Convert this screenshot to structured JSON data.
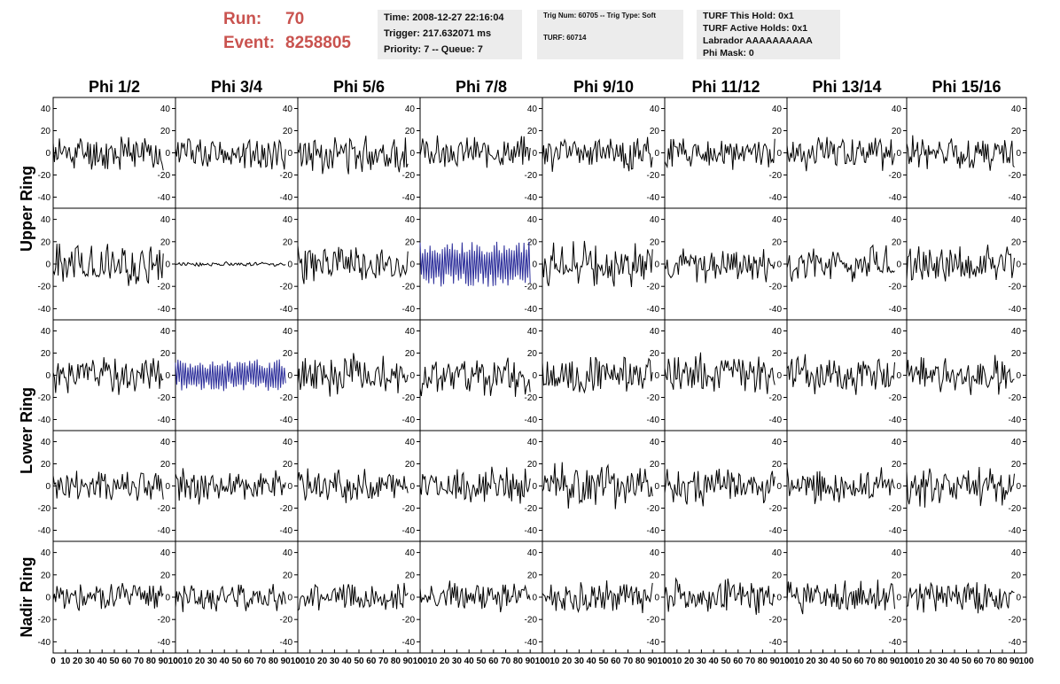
{
  "header": {
    "run_label": "Run:",
    "run_value": "70",
    "event_label": "Event:",
    "event_value": "8258805"
  },
  "info": {
    "time": "Time: 2008-12-27 22:16:04",
    "trigger": "Trigger: 217.632071 ms",
    "priority": "Priority: 7 -- Queue: 7",
    "trig_num": "Trig Num: 60705 -- Trig Type: Soft",
    "turf": "TURF: 60714",
    "turf_hold": "TURF This Hold: 0x1",
    "turf_active": "TURF Active Holds: 0x1",
    "labrador": "Labrador AAAAAAAAAA",
    "phi_mask": "Phi Mask: 0"
  },
  "chart_data": {
    "type": "line",
    "columns": [
      "Phi 1/2",
      "Phi 3/4",
      "Phi 5/6",
      "Phi 7/8",
      "Phi 9/10",
      "Phi 11/12",
      "Phi 13/14",
      "Phi 15/16"
    ],
    "ring_labels": [
      {
        "label": "Upper Ring",
        "rows": [
          0,
          1
        ]
      },
      {
        "label": "Lower Ring",
        "rows": [
          2,
          3
        ]
      },
      {
        "label": "Nadir Ring",
        "rows": [
          4,
          4
        ]
      }
    ],
    "xlim": [
      0,
      100
    ],
    "ylim": [
      -50,
      50
    ],
    "y_ticks": [
      -40,
      -20,
      0,
      20,
      40
    ],
    "x_ticks": [
      0,
      10,
      20,
      30,
      40,
      50,
      60,
      70,
      80,
      90,
      100
    ],
    "x_tick_labels": [
      "0",
      "10",
      "20",
      "30",
      "40",
      "50",
      "60",
      "70",
      "80",
      "90",
      "100"
    ],
    "samples": 90,
    "grid": false,
    "colors": {
      "normal": "#000000",
      "highlight": "#2b2d9a",
      "frame": "#000000"
    },
    "panels": [
      [
        {
          "amp": 13,
          "seed": 11
        },
        {
          "amp": 12,
          "seed": 12
        },
        {
          "amp": 14,
          "seed": 13
        },
        {
          "amp": 11,
          "seed": 14
        },
        {
          "amp": 12,
          "seed": 15
        },
        {
          "amp": 11,
          "seed": 16
        },
        {
          "amp": 12,
          "seed": 17
        },
        {
          "amp": 12,
          "seed": 18
        }
      ],
      [
        {
          "amp": 15,
          "seed": 21
        },
        {
          "amp": 1.5,
          "seed": 22
        },
        {
          "amp": 14,
          "seed": 23
        },
        {
          "amp": 17,
          "seed": 24,
          "highlight": true
        },
        {
          "amp": 15,
          "seed": 25
        },
        {
          "amp": 13,
          "seed": 26
        },
        {
          "amp": 12,
          "seed": 27
        },
        {
          "amp": 14,
          "seed": 28
        }
      ],
      [
        {
          "amp": 13,
          "seed": 31
        },
        {
          "amp": 12,
          "seed": 32,
          "highlight": true
        },
        {
          "amp": 14,
          "seed": 33
        },
        {
          "amp": 14,
          "seed": 34
        },
        {
          "amp": 13,
          "seed": 35
        },
        {
          "amp": 14,
          "seed": 36
        },
        {
          "amp": 15,
          "seed": 37
        },
        {
          "amp": 13,
          "seed": 38
        }
      ],
      [
        {
          "amp": 13,
          "seed": 41
        },
        {
          "amp": 12,
          "seed": 42
        },
        {
          "amp": 12,
          "seed": 43
        },
        {
          "amp": 13,
          "seed": 44
        },
        {
          "amp": 15,
          "seed": 45
        },
        {
          "amp": 13,
          "seed": 46
        },
        {
          "amp": 12,
          "seed": 47
        },
        {
          "amp": 16,
          "seed": 48
        }
      ],
      [
        {
          "amp": 11,
          "seed": 51
        },
        {
          "amp": 10,
          "seed": 52
        },
        {
          "amp": 10,
          "seed": 53
        },
        {
          "amp": 11,
          "seed": 54
        },
        {
          "amp": 11,
          "seed": 55
        },
        {
          "amp": 12,
          "seed": 56
        },
        {
          "amp": 11,
          "seed": 57
        },
        {
          "amp": 11,
          "seed": 58
        }
      ]
    ]
  }
}
